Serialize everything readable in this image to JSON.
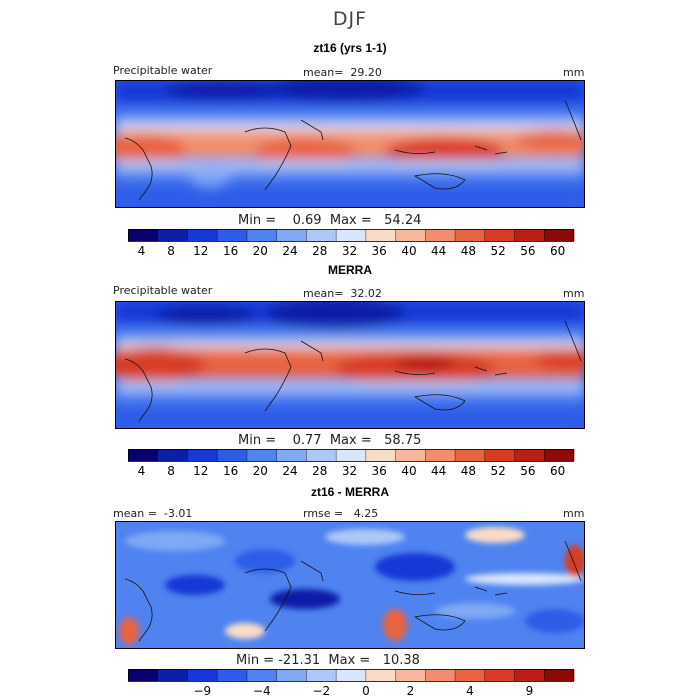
{
  "season_title": "DJF",
  "chart_data": [
    {
      "type": "heatmap",
      "title": "zt16 (yrs 1-1)",
      "variable_label": "Precipitable water",
      "units": "mm",
      "mean_label": "mean=",
      "mean_value": "29.20",
      "min_label": "Min =",
      "min_value": "0.69",
      "max_label": "Max =",
      "max_value": "54.24",
      "color_levels": [
        4,
        8,
        12,
        16,
        20,
        24,
        28,
        32,
        36,
        40,
        44,
        48,
        52,
        56,
        60
      ],
      "colorbar_ticks": [
        "4",
        "8",
        "12",
        "16",
        "20",
        "24",
        "28",
        "32",
        "36",
        "40",
        "44",
        "48",
        "52",
        "56",
        "60"
      ],
      "colors": [
        "#08006e",
        "#0a1fa8",
        "#1538d6",
        "#2d5de8",
        "#4f83f0",
        "#7fa8f5",
        "#adc8f8",
        "#d8e5fa",
        "#f9dcc8",
        "#f7b79b",
        "#f28e6e",
        "#e8633f",
        "#d93c22",
        "#bb1f12",
        "#8c0a05"
      ]
    },
    {
      "type": "heatmap",
      "title": "MERRA",
      "variable_label": "Precipitable water",
      "units": "mm",
      "mean_label": "mean=",
      "mean_value": "32.02",
      "min_label": "Min =",
      "min_value": "0.77",
      "max_label": "Max =",
      "max_value": "58.75",
      "color_levels": [
        4,
        8,
        12,
        16,
        20,
        24,
        28,
        32,
        36,
        40,
        44,
        48,
        52,
        56,
        60
      ],
      "colorbar_ticks": [
        "4",
        "8",
        "12",
        "16",
        "20",
        "24",
        "28",
        "32",
        "36",
        "40",
        "44",
        "48",
        "52",
        "56",
        "60"
      ],
      "colors": [
        "#08006e",
        "#0a1fa8",
        "#1538d6",
        "#2d5de8",
        "#4f83f0",
        "#7fa8f5",
        "#adc8f8",
        "#d8e5fa",
        "#f9dcc8",
        "#f7b79b",
        "#f28e6e",
        "#e8633f",
        "#d93c22",
        "#bb1f12",
        "#8c0a05"
      ]
    },
    {
      "type": "heatmap",
      "title": "zt16 - MERRA",
      "units": "mm",
      "mean_label": "mean =",
      "mean_value": "-3.01",
      "rmse_label": "rmse =",
      "rmse_value": "4.25",
      "min_label": "Min =",
      "min_value": "-21.31",
      "max_label": "Max =",
      "max_value": "10.38",
      "colorbar_ticks": [
        "−9",
        "−4",
        "−2",
        "0",
        "2",
        "4",
        "9"
      ],
      "colors": [
        "#08006e",
        "#0a1fa8",
        "#1538d6",
        "#2d5de8",
        "#4f83f0",
        "#7fa8f5",
        "#adc8f8",
        "#d8e5fa",
        "#f9dcc8",
        "#f7b79b",
        "#f28e6e",
        "#e8633f",
        "#d93c22",
        "#bb1f12",
        "#8c0a05"
      ]
    }
  ]
}
